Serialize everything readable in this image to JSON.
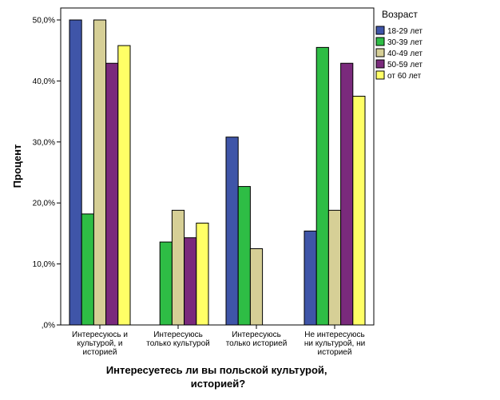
{
  "chart_data": {
    "type": "bar",
    "title": "",
    "xlabel_lines": [
      "Интересуетесь ли вы польской культурой,",
      "историей?"
    ],
    "ylabel": "Процент",
    "ylim": [
      0,
      50
    ],
    "yticks": [
      0,
      10,
      20,
      30,
      40,
      50
    ],
    "ytick_labels": [
      ",0%",
      "10,0%",
      "20,0%",
      "30,0%",
      "40,0%",
      "50,0%"
    ],
    "categories": [
      [
        "Интересуюсь и",
        "культурой, и",
        "историей"
      ],
      [
        "Интересуюсь",
        "только культурой"
      ],
      [
        "Интересуюсь",
        "только историей"
      ],
      [
        "Не интересуюсь",
        "ни культурой, ни",
        "историей"
      ]
    ],
    "legend_title": "Возраст",
    "legend_position": "top-right",
    "series": [
      {
        "name": "18-29 лет",
        "color": "#3f55a8",
        "values": [
          50.0,
          0,
          30.8,
          15.4
        ]
      },
      {
        "name": "30-39 лет",
        "color": "#2ebd45",
        "values": [
          18.2,
          13.6,
          22.7,
          45.5
        ]
      },
      {
        "name": "40-49 лет",
        "color": "#d6cf96",
        "values": [
          50.0,
          18.8,
          12.5,
          18.8
        ]
      },
      {
        "name": "50-59 лет",
        "color": "#7a2a7c",
        "values": [
          42.9,
          14.3,
          0,
          42.9
        ]
      },
      {
        "name": "от 60 лет",
        "color": "#ffff66",
        "values": [
          45.8,
          16.7,
          0,
          37.5
        ]
      }
    ]
  }
}
